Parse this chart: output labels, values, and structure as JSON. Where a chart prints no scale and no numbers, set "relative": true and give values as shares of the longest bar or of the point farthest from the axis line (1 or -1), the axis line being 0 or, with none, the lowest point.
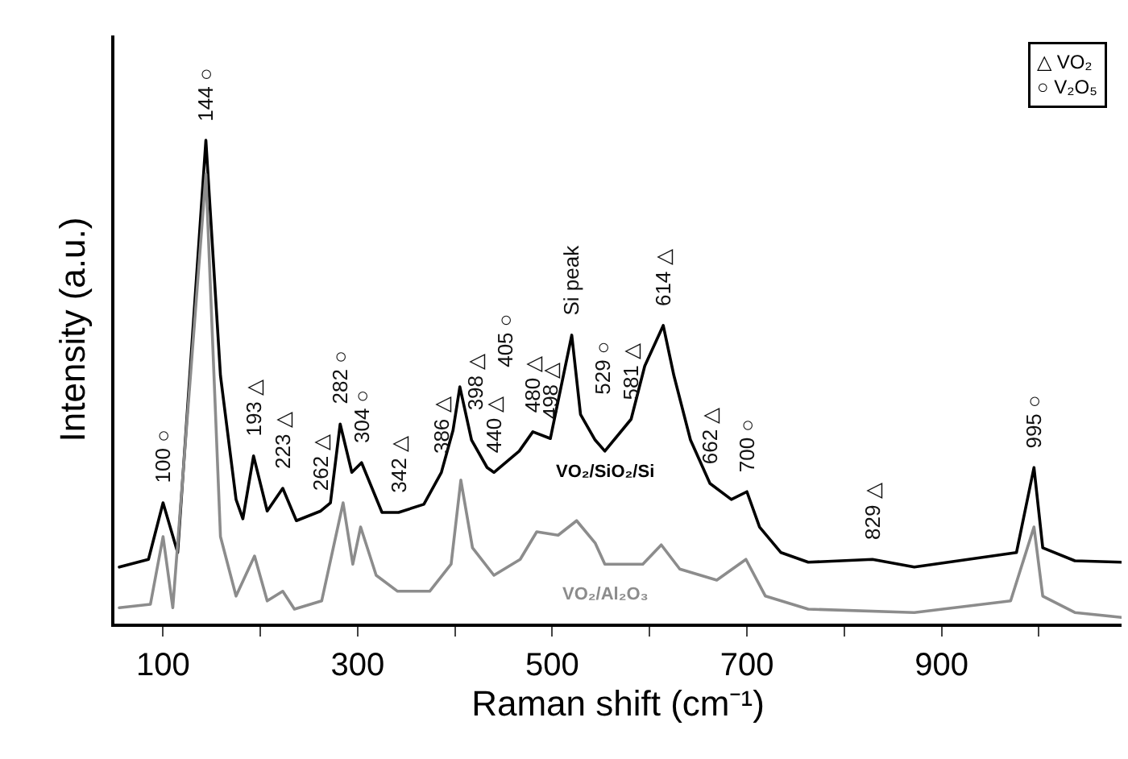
{
  "chart_data": {
    "type": "line",
    "relative": true,
    "xlabel": "Raman shift (cm⁻¹)",
    "ylabel": "Intensity (a.u.)",
    "xlim": [
      50,
      1085
    ],
    "xticks": [
      100,
      {
        "value": 200,
        "label": null
      },
      300,
      {
        "value": 400,
        "label": null
      },
      500,
      {
        "value": 600,
        "label": null
      },
      700,
      {
        "value": 800,
        "label": null
      },
      900,
      {
        "value": 1000,
        "label": null
      }
    ],
    "series": [
      {
        "name": "VO₂/SiO₂/Si",
        "color": "#000000",
        "x": [
          55,
          85,
          100,
          115,
          144,
          159,
          175,
          182,
          193,
          207,
          223,
          237,
          262,
          272,
          282,
          294,
          304,
          325,
          342,
          368,
          386,
          398,
          405,
          417,
          433,
          440,
          466,
          480,
          498,
          520,
          529,
          544,
          554,
          581,
          595,
          614,
          625,
          642,
          662,
          684,
          700,
          713,
          735,
          763,
          829,
          872,
          977,
          995,
          1004,
          1037,
          1085
        ],
        "values": [
          0.117,
          0.133,
          0.25,
          0.147,
          1.0,
          0.513,
          0.257,
          0.217,
          0.347,
          0.233,
          0.28,
          0.213,
          0.233,
          0.25,
          0.413,
          0.313,
          0.333,
          0.23,
          0.23,
          0.247,
          0.313,
          0.4,
          0.49,
          0.38,
          0.323,
          0.313,
          0.357,
          0.397,
          0.383,
          0.597,
          0.433,
          0.38,
          0.357,
          0.423,
          0.533,
          0.617,
          0.513,
          0.38,
          0.29,
          0.257,
          0.273,
          0.2,
          0.147,
          0.127,
          0.133,
          0.117,
          0.147,
          0.323,
          0.157,
          0.13,
          0.127
        ]
      },
      {
        "name": "VO₂/Al₂O₃",
        "color": "#8c8c8c",
        "x": [
          55,
          87,
          100,
          110,
          144,
          159,
          175,
          194,
          207,
          223,
          235,
          263,
          285,
          295,
          303,
          319,
          341,
          374,
          396,
          406,
          418,
          440,
          467,
          484,
          506,
          525,
          544,
          554,
          593,
          612,
          631,
          669,
          699,
          719,
          763,
          872,
          971,
          995,
          1004,
          1037,
          1085
        ],
        "values": [
          0.033,
          0.04,
          0.18,
          0.033,
          0.93,
          0.18,
          0.057,
          0.14,
          0.047,
          0.067,
          0.03,
          0.047,
          0.25,
          0.123,
          0.2,
          0.1,
          0.067,
          0.067,
          0.123,
          0.297,
          0.157,
          0.1,
          0.133,
          0.19,
          0.183,
          0.213,
          0.167,
          0.123,
          0.123,
          0.163,
          0.113,
          0.09,
          0.133,
          0.057,
          0.03,
          0.023,
          0.047,
          0.2,
          0.057,
          0.023,
          0.013
        ]
      }
    ],
    "annotations": [
      "△ VO₂",
      "○ V₂O₅",
      {
        "text": "100 ○",
        "x": 100,
        "y": 0.25
      },
      {
        "text": "144 ○",
        "x": 144,
        "y": 1.0
      },
      {
        "text": "193 △",
        "x": 193,
        "y": 0.347
      },
      {
        "text": "223 △",
        "x": 223,
        "y": 0.28
      },
      {
        "text": "262 △",
        "x": 262,
        "y": 0.233
      },
      {
        "text": "282 ○",
        "x": 282,
        "y": 0.413
      },
      {
        "text": "304 ○",
        "x": 304,
        "y": 0.333
      },
      {
        "text": "342 △",
        "x": 342,
        "y": 0.23
      },
      {
        "text": "386 △",
        "x": 386,
        "y": 0.313
      },
      {
        "text": "398 △",
        "x": 398,
        "y": 0.4
      },
      {
        "text": "405 ○",
        "x": 405,
        "y": 0.49
      },
      {
        "text": "440 △",
        "x": 440,
        "y": 0.313
      },
      {
        "text": "480 △",
        "x": 480,
        "y": 0.397
      },
      {
        "text": "498 △",
        "x": 498,
        "y": 0.383
      },
      {
        "text": "Si peak",
        "x": 520,
        "y": 0.597
      },
      {
        "text": "529 ○",
        "x": 529,
        "y": 0.433
      },
      {
        "text": "581 △",
        "x": 581,
        "y": 0.423
      },
      {
        "text": "614 △",
        "x": 614,
        "y": 0.617
      },
      {
        "text": "662 △",
        "x": 662,
        "y": 0.29
      },
      {
        "text": "700 ○",
        "x": 700,
        "y": 0.273
      },
      {
        "text": "829 △",
        "x": 829,
        "y": 0.133
      },
      {
        "text": "995 ○",
        "x": 995,
        "y": 0.323
      }
    ]
  }
}
